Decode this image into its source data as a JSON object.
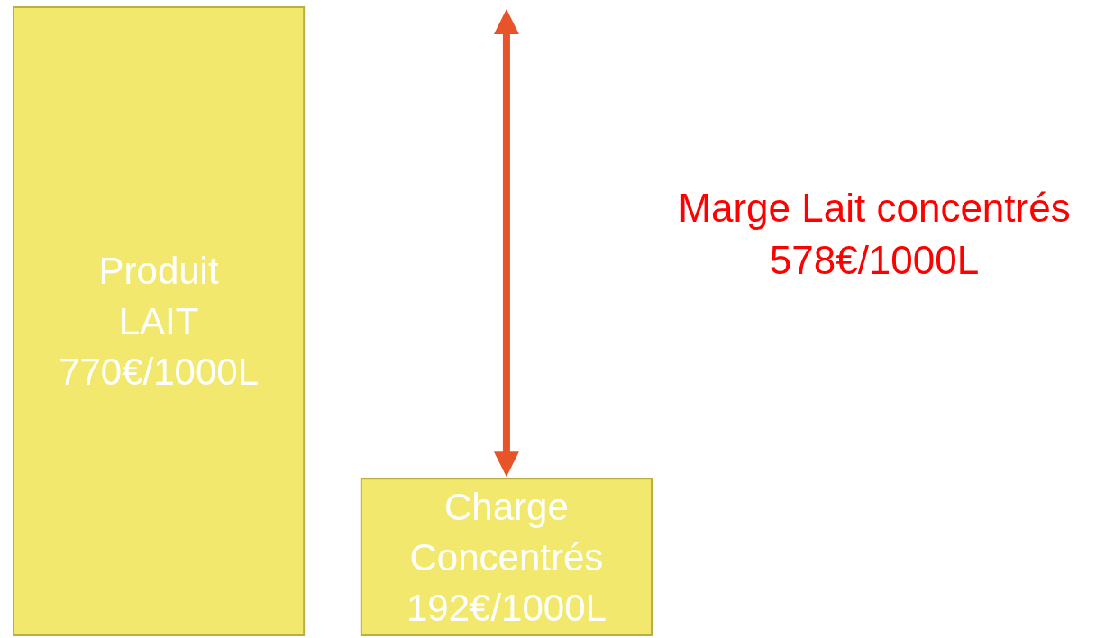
{
  "chart_data": {
    "type": "bar",
    "categories": [
      "Produit LAIT",
      "Charge Concentrés"
    ],
    "values": [
      770,
      192
    ],
    "value_labels": [
      "770€/1000L",
      "192€/1000L"
    ],
    "color": "#f2e86e",
    "annotations": [
      "Marge Lait concentrés 578€/1000L"
    ]
  }
}
